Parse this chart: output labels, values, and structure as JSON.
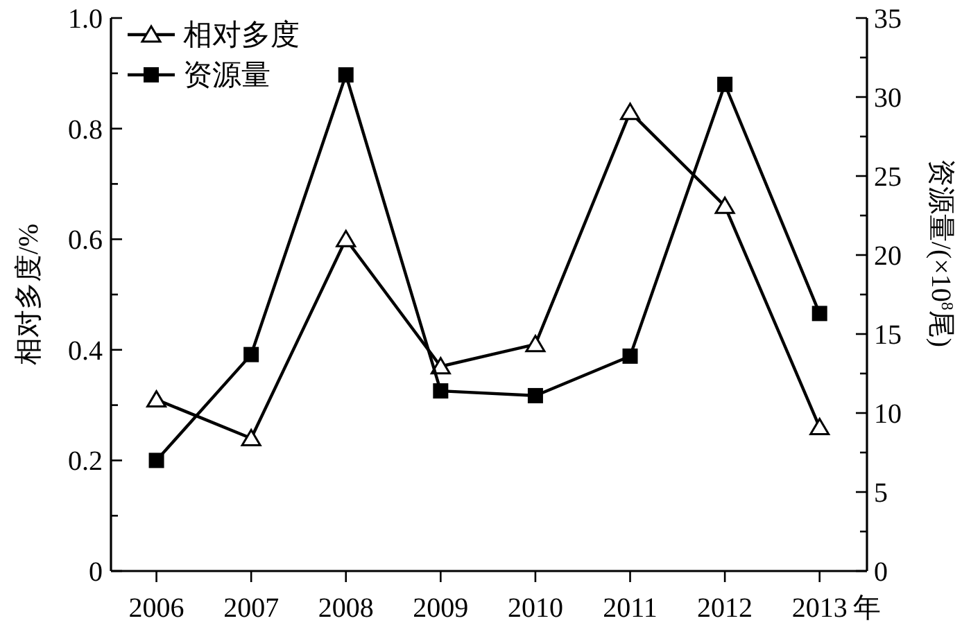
{
  "chart_data": {
    "type": "line",
    "xlabel": "年",
    "ylabel": "相对多度/%",
    "y2label": "资源量/(×10$^{8}$尾)",
    "categories": [
      "2006",
      "2007",
      "2008",
      "2009",
      "2010",
      "2011",
      "2012",
      "2013"
    ],
    "series": [
      {
        "name": "相对多度",
        "color": "#000000",
        "marker": "triangle",
        "values": [
          0.31,
          0.24,
          0.6,
          0.37,
          0.41,
          0.83,
          0.66,
          0.26
        ]
      },
      {
        "name": "资源量",
        "color": "#000000",
        "marker": "square",
        "axis": "y2",
        "values": [
          7.0,
          13.7,
          31.4,
          11.4,
          11.1,
          13.6,
          30.8,
          16.3
        ]
      }
    ],
    "ylim": [
      0,
      1.0
    ],
    "yticks": [
      0,
      {
        "value": 0.1,
        "label": null
      },
      0.2,
      {
        "value": 0.3,
        "label": null
      },
      0.4,
      {
        "value": 0.5,
        "label": null
      },
      0.6,
      {
        "value": 0.7,
        "label": null
      },
      0.8,
      {
        "value": 0.9,
        "label": null
      },
      {
        "value": 1.0,
        "label": "1.0"
      }
    ],
    "y2lim": [
      0,
      35
    ],
    "y2ticks": [
      0,
      {
        "value": 2.5,
        "label": null
      },
      5,
      {
        "value": 7.5,
        "label": null
      },
      10,
      {
        "value": 12.5,
        "label": null
      },
      15,
      {
        "value": 17.5,
        "label": null
      },
      20,
      {
        "value": 22.5,
        "label": null
      },
      25,
      {
        "value": 27.5,
        "label": null
      },
      30,
      {
        "value": 32.5,
        "label": null
      },
      35
    ],
    "legend": "top left",
    "grid": false,
    "line_style": "solid"
  }
}
